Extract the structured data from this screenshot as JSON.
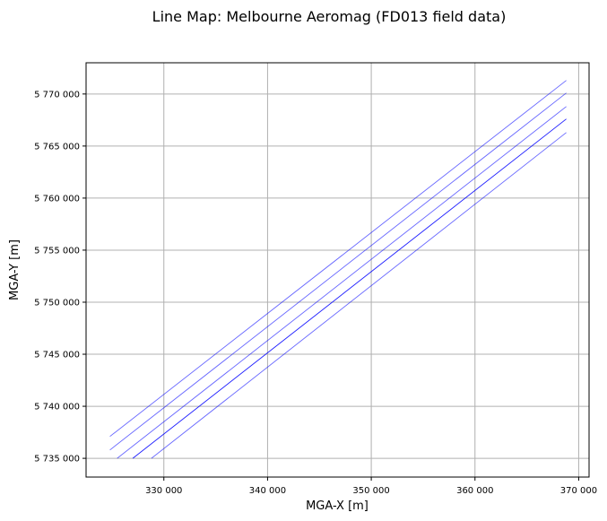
{
  "chart_data": {
    "type": "line",
    "title": "Line Map: Melbourne Aeromag (FD013 field data)",
    "xlabel": "MGA-X [m]",
    "ylabel": "MGA-Y [m]",
    "xlim": [
      322500,
      371000
    ],
    "ylim": [
      5733200,
      5773000
    ],
    "xticks": [
      330000,
      340000,
      350000,
      360000,
      370000
    ],
    "xtick_labels": [
      "330 000",
      "340 000",
      "350 000",
      "360 000",
      "370 000"
    ],
    "yticks": [
      5735000,
      5740000,
      5745000,
      5750000,
      5755000,
      5760000,
      5765000,
      5770000
    ],
    "ytick_labels": [
      "5 735 000",
      "5 740 000",
      "5 745 000",
      "5 750 000",
      "5 755 000",
      "5 760 000",
      "5 765 000",
      "5 770 000"
    ],
    "grid": true,
    "line_color": "#0000ff",
    "grid_color": "#b0b0b0",
    "series": [
      {
        "x": [
          324800,
          368800
        ],
        "y": [
          5737100,
          5771300
        ],
        "opacity": 0.6
      },
      {
        "x": [
          324800,
          368800
        ],
        "y": [
          5735800,
          5770100
        ],
        "opacity": 0.6
      },
      {
        "x": [
          325500,
          368800
        ],
        "y": [
          5735000,
          5768800
        ],
        "opacity": 0.6
      },
      {
        "x": [
          327000,
          368800
        ],
        "y": [
          5735000,
          5767600
        ],
        "opacity": 0.9
      },
      {
        "x": [
          328800,
          368800
        ],
        "y": [
          5735000,
          5766300
        ],
        "opacity": 0.6
      }
    ]
  }
}
